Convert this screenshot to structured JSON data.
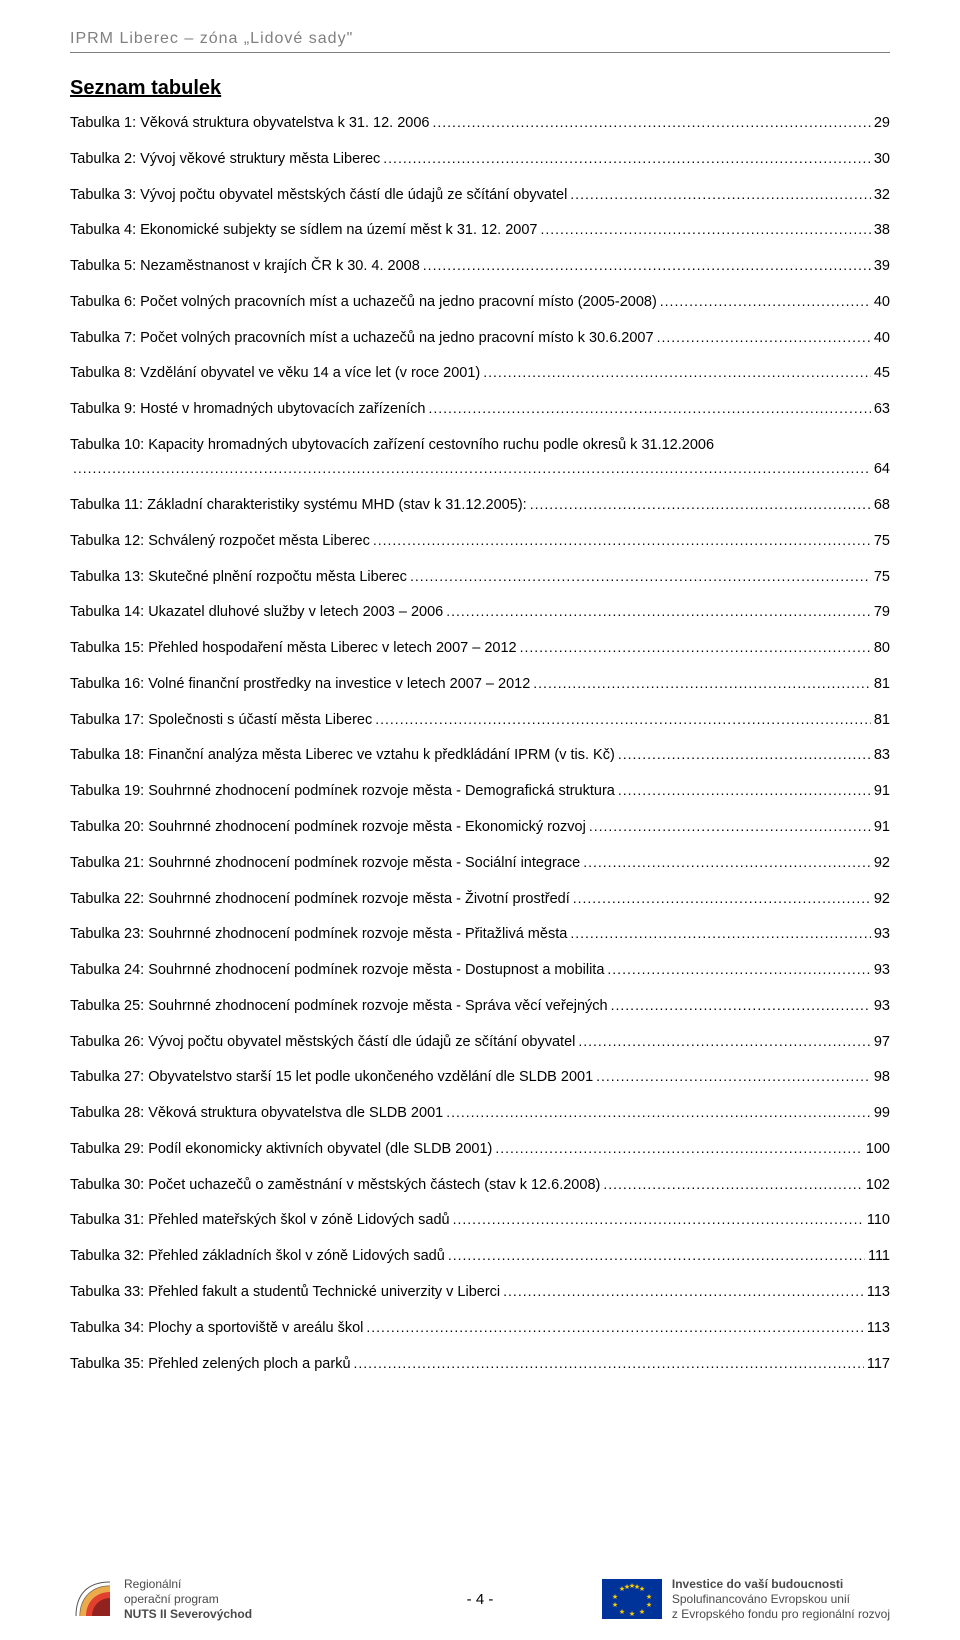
{
  "header": {
    "title": "IPRM Liberec – zóna „Lidové sady\""
  },
  "section_heading": "Seznam tabulek",
  "toc": [
    {
      "label": "Tabulka 1: Věková struktura obyvatelstva k 31. 12. 2006",
      "page": "29"
    },
    {
      "label": "Tabulka 2: Vývoj věkové struktury města Liberec",
      "page": "30"
    },
    {
      "label": "Tabulka 3: Vývoj počtu obyvatel městských částí dle údajů ze sčítání obyvatel",
      "page": "32"
    },
    {
      "label": "Tabulka 4: Ekonomické subjekty se sídlem na území měst k 31. 12. 2007",
      "page": "38"
    },
    {
      "label": "Tabulka 5: Nezaměstnanost v krajích ČR k 30. 4. 2008",
      "page": "39"
    },
    {
      "label": "Tabulka 6: Počet volných pracovních míst a uchazečů na jedno pracovní místo (2005-2008)",
      "page": "40"
    },
    {
      "label": "Tabulka 7: Počet volných pracovních míst a uchazečů na jedno pracovní místo k 30.6.2007",
      "page": "40"
    },
    {
      "label": "Tabulka 8: Vzdělání obyvatel ve věku 14 a více let (v roce 2001)",
      "page": "45"
    },
    {
      "label": "Tabulka 9: Hosté v hromadných ubytovacích zařízeních",
      "page": "63"
    },
    {
      "label": "Tabulka 10: Kapacity hromadných ubytovacích zařízení cestovního ruchu podle okresů k 31.12.2006",
      "page": "64",
      "wrap": true
    },
    {
      "label": "Tabulka 11: Základní charakteristiky systému MHD (stav k 31.12.2005):",
      "page": "68"
    },
    {
      "label": "Tabulka 12: Schválený rozpočet města Liberec",
      "page": "75"
    },
    {
      "label": "Tabulka 13: Skutečné plnění rozpočtu města Liberec",
      "page": "75"
    },
    {
      "label": "Tabulka 14: Ukazatel dluhové služby v letech 2003 – 2006",
      "page": "79"
    },
    {
      "label": "Tabulka 15: Přehled hospodaření města Liberec v letech 2007 – 2012",
      "page": "80"
    },
    {
      "label": "Tabulka 16: Volné finanční prostředky na investice v letech 2007 – 2012",
      "page": "81"
    },
    {
      "label": "Tabulka 17: Společnosti s účastí města Liberec",
      "page": "81"
    },
    {
      "label": "Tabulka 18: Finanční analýza města Liberec ve vztahu k předkládání IPRM (v tis. Kč)",
      "page": "83"
    },
    {
      "label": "Tabulka 19: Souhrnné zhodnocení podmínek rozvoje města - Demografická struktura",
      "page": "91"
    },
    {
      "label": "Tabulka 20: Souhrnné zhodnocení podmínek rozvoje města - Ekonomický rozvoj",
      "page": "91"
    },
    {
      "label": "Tabulka 21: Souhrnné zhodnocení podmínek rozvoje města - Sociální integrace",
      "page": "92"
    },
    {
      "label": "Tabulka 22: Souhrnné zhodnocení podmínek rozvoje města - Životní prostředí",
      "page": "92"
    },
    {
      "label": "Tabulka 23: Souhrnné zhodnocení podmínek rozvoje města - Přitažlivá města",
      "page": "93"
    },
    {
      "label": "Tabulka 24: Souhrnné zhodnocení podmínek rozvoje města - Dostupnost a mobilita",
      "page": "93"
    },
    {
      "label": "Tabulka 25: Souhrnné zhodnocení podmínek rozvoje města - Správa věcí veřejných",
      "page": "93"
    },
    {
      "label": "Tabulka 26: Vývoj počtu obyvatel městských částí dle údajů ze sčítání obyvatel",
      "page": "97"
    },
    {
      "label": "Tabulka 27: Obyvatelstvo starší 15 let podle ukončeného vzdělání dle SLDB 2001",
      "page": "98"
    },
    {
      "label": "Tabulka 28: Věková struktura obyvatelstva dle SLDB 2001",
      "page": "99"
    },
    {
      "label": "Tabulka 29: Podíl ekonomicky aktivních obyvatel (dle SLDB 2001)",
      "page": "100"
    },
    {
      "label": "Tabulka 30: Počet uchazečů o zaměstnání v městských částech (stav k 12.6.2008)",
      "page": "102"
    },
    {
      "label": "Tabulka 31: Přehled mateřských škol v zóně Lidových sadů",
      "page": "110"
    },
    {
      "label": "Tabulka 32: Přehled základních škol v zóně Lidových sadů",
      "page": "111"
    },
    {
      "label": "Tabulka 33: Přehled fakult a studentů Technické univerzity v Liberci",
      "page": "113"
    },
    {
      "label": "Tabulka 34: Plochy a sportoviště v areálu škol",
      "page": "113"
    },
    {
      "label": "Tabulka 35: Přehled zelených ploch a parků",
      "page": "117"
    }
  ],
  "footer": {
    "left_line1": "Regionální",
    "left_line2": "operační program",
    "left_line3": "NUTS II Severovýchod",
    "page_number": "- 4 -",
    "right_line1": "Investice do vaší budoucnosti",
    "right_line2": "Spolufinancováno Evropskou unií",
    "right_line3": "z Evropského fondu pro regionální rozvoj"
  },
  "colors": {
    "header_text": "#808080",
    "body_text": "#000000",
    "eu_blue": "#003399",
    "eu_gold": "#ffcc00",
    "footer_text": "#4a4a4a",
    "background": "#ffffff"
  }
}
